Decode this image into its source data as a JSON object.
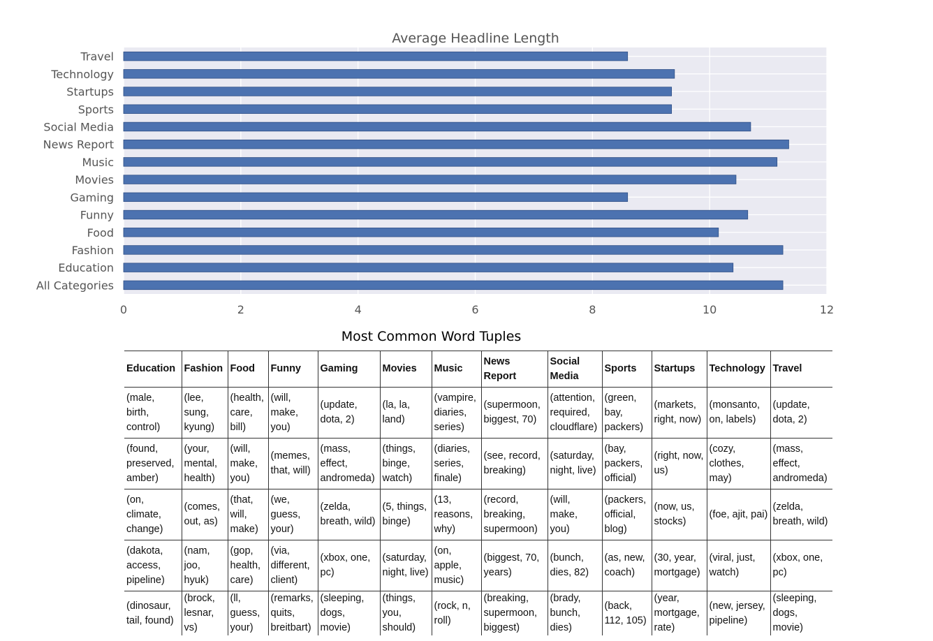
{
  "chart_data": {
    "type": "bar",
    "orientation": "horizontal",
    "title": "Average Headline Length",
    "categories": [
      "Travel",
      "Technology",
      "Startups",
      "Sports",
      "Social Media",
      "News Report",
      "Music",
      "Movies",
      "Gaming",
      "Funny",
      "Food",
      "Fashion",
      "Education",
      "All Categories"
    ],
    "values": [
      8.6,
      9.4,
      9.35,
      9.35,
      10.7,
      11.35,
      11.15,
      10.45,
      8.6,
      10.65,
      10.15,
      11.25,
      10.4,
      11.25
    ],
    "xlim": [
      0,
      12
    ],
    "xticks": [
      "0",
      "2",
      "4",
      "6",
      "8",
      "10",
      "12"
    ],
    "xlabel": "",
    "ylabel": "",
    "grid": true,
    "colors": {
      "bar": "#4c72b0",
      "bar_edge": "#2f4f86",
      "plot_bg": "#eaeaf2",
      "grid": "#ffffff"
    }
  },
  "table": {
    "title": "Most Common Word Tuples",
    "headers": [
      "Education",
      "Fashion",
      "Food",
      "Funny",
      "Gaming",
      "Movies",
      "Music",
      "News Report",
      "Social Media",
      "Sports",
      "Startups",
      "Technology",
      "Travel"
    ],
    "rows": [
      [
        "(male, birth, control)",
        "(lee, sung, kyung)",
        "(health, care, bill)",
        "(will, make, you)",
        "(update, dota, 2)",
        "(la, la, land)",
        "(vampire, diaries, series)",
        "(supermoon, biggest, 70)",
        "(attention, required, cloudflare)",
        "(green, bay, packers)",
        "(markets, right, now)",
        "(monsanto, on, labels)",
        "(update, dota, 2)"
      ],
      [
        "(found, preserved, amber)",
        "(your, mental, health)",
        "(will, make, you)",
        "(memes, that, will)",
        "(mass, effect, andromeda)",
        "(things, binge, watch)",
        "(diaries, series, finale)",
        "(see, record, breaking)",
        "(saturday, night, live)",
        "(bay, packers, official)",
        "(right, now, us)",
        "(cozy, clothes, may)",
        "(mass, effect, andromeda)"
      ],
      [
        "(on, climate, change)",
        "(comes, out, as)",
        "(that, will, make)",
        "(we, guess, your)",
        "(zelda, breath, wild)",
        "(5, things, binge)",
        "(13, reasons, why)",
        "(record, breaking, supermoon)",
        "(will, make, you)",
        "(packers, official, blog)",
        "(now, us, stocks)",
        "(foe, ajit, pai)",
        "(zelda, breath, wild)"
      ],
      [
        "(dakota, access, pipeline)",
        "(nam, joo, hyuk)",
        "(gop, health, care)",
        "(via, different, client)",
        "(xbox, one, pc)",
        "(saturday, night, live)",
        "(on, apple, music)",
        "(biggest, 70, years)",
        "(bunch, dies, 82)",
        "(as, new, coach)",
        "(30, year, mortgage)",
        "(viral, just, watch)",
        "(xbox, one, pc)"
      ],
      [
        "(dinosaur, tail, found)",
        "(brock, lesnar, vs)",
        "(ll, guess, your)",
        "(remarks, quits, breitbart)",
        "(sleeping, dogs, movie)",
        "(things, you, should)",
        "(rock, n, roll)",
        "(breaking, supermoon, biggest)",
        "(brady, bunch, dies)",
        "(back, 112, 105)",
        "(year, mortgage, rate)",
        "(new, jersey, pipeline)",
        "(sleeping, dogs, movie)"
      ]
    ]
  }
}
